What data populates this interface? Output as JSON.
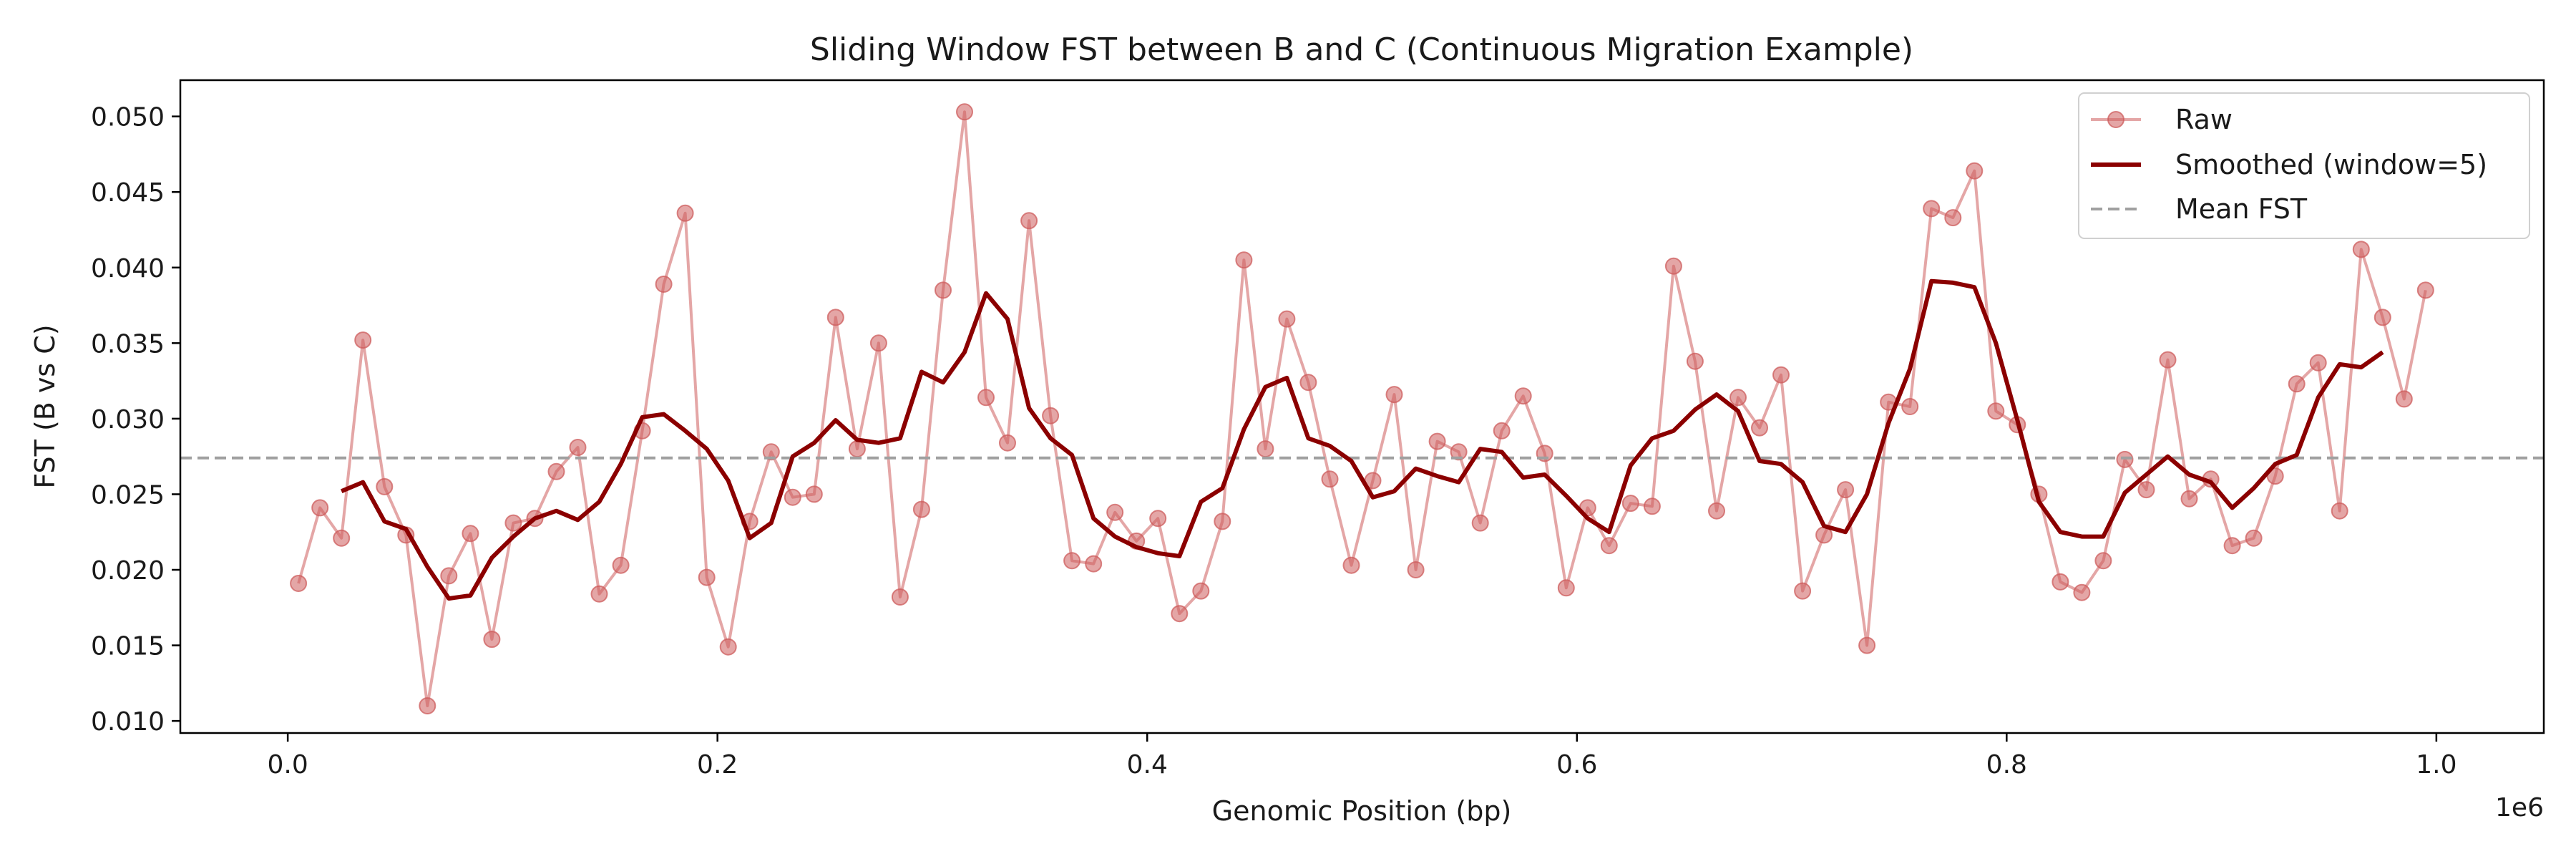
{
  "chart_data": {
    "type": "line",
    "title": "Sliding Window FST between B and C (Continuous Migration Example)",
    "xlabel": "Genomic Position (bp)",
    "ylabel": "FST (B vs C)",
    "x_offset_label": "1e6",
    "xlim": [
      -50000,
      1050000
    ],
    "ylim": [
      0.0092,
      0.0524
    ],
    "x_ticks": [
      0,
      200000,
      400000,
      600000,
      800000,
      1000000
    ],
    "x_tick_labels": [
      "0.0",
      "0.2",
      "0.4",
      "0.6",
      "0.8",
      "1.0"
    ],
    "y_ticks": [
      0.01,
      0.015,
      0.02,
      0.025,
      0.03,
      0.035,
      0.04,
      0.045,
      0.05
    ],
    "y_tick_labels": [
      "0.010",
      "0.015",
      "0.020",
      "0.025",
      "0.030",
      "0.035",
      "0.040",
      "0.045",
      "0.050"
    ],
    "grid": false,
    "legend_position": "top-right",
    "series": [
      {
        "name": "Raw",
        "style": "line-with-markers",
        "color": "#cd5c5c",
        "x": [
          5000,
          15000,
          25000,
          35000,
          45000,
          55000,
          65000,
          75000,
          85000,
          95000,
          105000,
          115000,
          125000,
          135000,
          145000,
          155000,
          165000,
          175000,
          185000,
          195000,
          205000,
          215000,
          225000,
          235000,
          245000,
          255000,
          265000,
          275000,
          285000,
          295000,
          305000,
          315000,
          325000,
          335000,
          345000,
          355000,
          365000,
          375000,
          385000,
          395000,
          405000,
          415000,
          425000,
          435000,
          445000,
          455000,
          465000,
          475000,
          485000,
          495000,
          505000,
          515000,
          525000,
          535000,
          545000,
          555000,
          565000,
          575000,
          585000,
          595000,
          605000,
          615000,
          625000,
          635000,
          645000,
          655000,
          665000,
          675000,
          685000,
          695000,
          705000,
          715000,
          725000,
          735000,
          745000,
          755000,
          765000,
          775000,
          785000,
          795000,
          805000,
          815000,
          825000,
          835000,
          845000,
          855000,
          865000,
          875000,
          885000,
          895000,
          905000,
          915000,
          925000,
          935000,
          945000,
          955000,
          965000,
          975000,
          985000,
          995000
        ],
        "values": [
          0.0191,
          0.0241,
          0.0221,
          0.0352,
          0.0255,
          0.0223,
          0.011,
          0.0196,
          0.0224,
          0.0154,
          0.0231,
          0.0234,
          0.0265,
          0.0281,
          0.0184,
          0.0203,
          0.0292,
          0.0389,
          0.0436,
          0.0195,
          0.0149,
          0.0232,
          0.0278,
          0.0248,
          0.025,
          0.0367,
          0.028,
          0.035,
          0.0182,
          0.024,
          0.0385,
          0.0503,
          0.0314,
          0.0284,
          0.0431,
          0.0302,
          0.0206,
          0.0204,
          0.0238,
          0.0219,
          0.0234,
          0.0171,
          0.0186,
          0.0232,
          0.0405,
          0.028,
          0.0366,
          0.0324,
          0.026,
          0.0203,
          0.0259,
          0.0316,
          0.02,
          0.0285,
          0.0278,
          0.0231,
          0.0292,
          0.0315,
          0.0277,
          0.0188,
          0.0241,
          0.0216,
          0.0244,
          0.0242,
          0.0401,
          0.0338,
          0.0239,
          0.0314,
          0.0294,
          0.0329,
          0.0186,
          0.0223,
          0.0253,
          0.015,
          0.0311,
          0.0308,
          0.0439,
          0.0433,
          0.0464,
          0.0305,
          0.0296,
          0.025,
          0.0192,
          0.0185,
          0.0206,
          0.0273,
          0.0253,
          0.0339,
          0.0247,
          0.026,
          0.0216,
          0.0221,
          0.0262,
          0.0323,
          0.0337,
          0.0239,
          0.0412,
          0.0367,
          0.0313,
          0.0385
        ]
      },
      {
        "name": "Smoothed (window=5)",
        "style": "line",
        "color": "#8b0000",
        "x": [
          25000,
          35000,
          45000,
          55000,
          65000,
          75000,
          85000,
          95000,
          105000,
          115000,
          125000,
          135000,
          145000,
          155000,
          165000,
          175000,
          185000,
          195000,
          205000,
          215000,
          225000,
          235000,
          245000,
          255000,
          265000,
          275000,
          285000,
          295000,
          305000,
          315000,
          325000,
          335000,
          345000,
          355000,
          365000,
          375000,
          385000,
          395000,
          405000,
          415000,
          425000,
          435000,
          445000,
          455000,
          465000,
          475000,
          485000,
          495000,
          505000,
          515000,
          525000,
          535000,
          545000,
          555000,
          565000,
          575000,
          585000,
          595000,
          605000,
          615000,
          625000,
          635000,
          645000,
          655000,
          665000,
          675000,
          685000,
          695000,
          705000,
          715000,
          725000,
          735000,
          745000,
          755000,
          765000,
          775000,
          785000,
          795000,
          805000,
          815000,
          825000,
          835000,
          845000,
          855000,
          865000,
          875000,
          885000,
          895000,
          905000,
          915000,
          925000,
          935000,
          945000,
          955000,
          965000,
          975000
        ],
        "values": [
          0.0252,
          0.0258,
          0.0232,
          0.0227,
          0.0202,
          0.0181,
          0.0183,
          0.0208,
          0.0222,
          0.0234,
          0.0239,
          0.0233,
          0.0245,
          0.027,
          0.0301,
          0.0303,
          0.0292,
          0.028,
          0.0259,
          0.0221,
          0.0231,
          0.0275,
          0.0284,
          0.0299,
          0.0286,
          0.0284,
          0.0287,
          0.0331,
          0.0324,
          0.0344,
          0.0383,
          0.0366,
          0.0307,
          0.0287,
          0.0276,
          0.0234,
          0.0222,
          0.0215,
          0.0211,
          0.0209,
          0.0245,
          0.0254,
          0.0293,
          0.0321,
          0.0327,
          0.0287,
          0.0282,
          0.0272,
          0.0248,
          0.0252,
          0.0267,
          0.0262,
          0.0258,
          0.028,
          0.0278,
          0.0261,
          0.0263,
          0.0249,
          0.0234,
          0.0225,
          0.0269,
          0.0287,
          0.0292,
          0.0306,
          0.0316,
          0.0305,
          0.0272,
          0.027,
          0.0258,
          0.0229,
          0.0225,
          0.025,
          0.0297,
          0.0333,
          0.0391,
          0.039,
          0.0387,
          0.035,
          0.0299,
          0.0245,
          0.0225,
          0.0222,
          0.0222,
          0.0251,
          0.0263,
          0.0275,
          0.0263,
          0.0258,
          0.0241,
          0.0254,
          0.027,
          0.0276,
          0.0314,
          0.0336,
          0.0334,
          0.0344
        ]
      },
      {
        "name": "Mean FST",
        "style": "dashed-hline",
        "color": "#a0a0a0",
        "value": 0.0274
      }
    ]
  }
}
